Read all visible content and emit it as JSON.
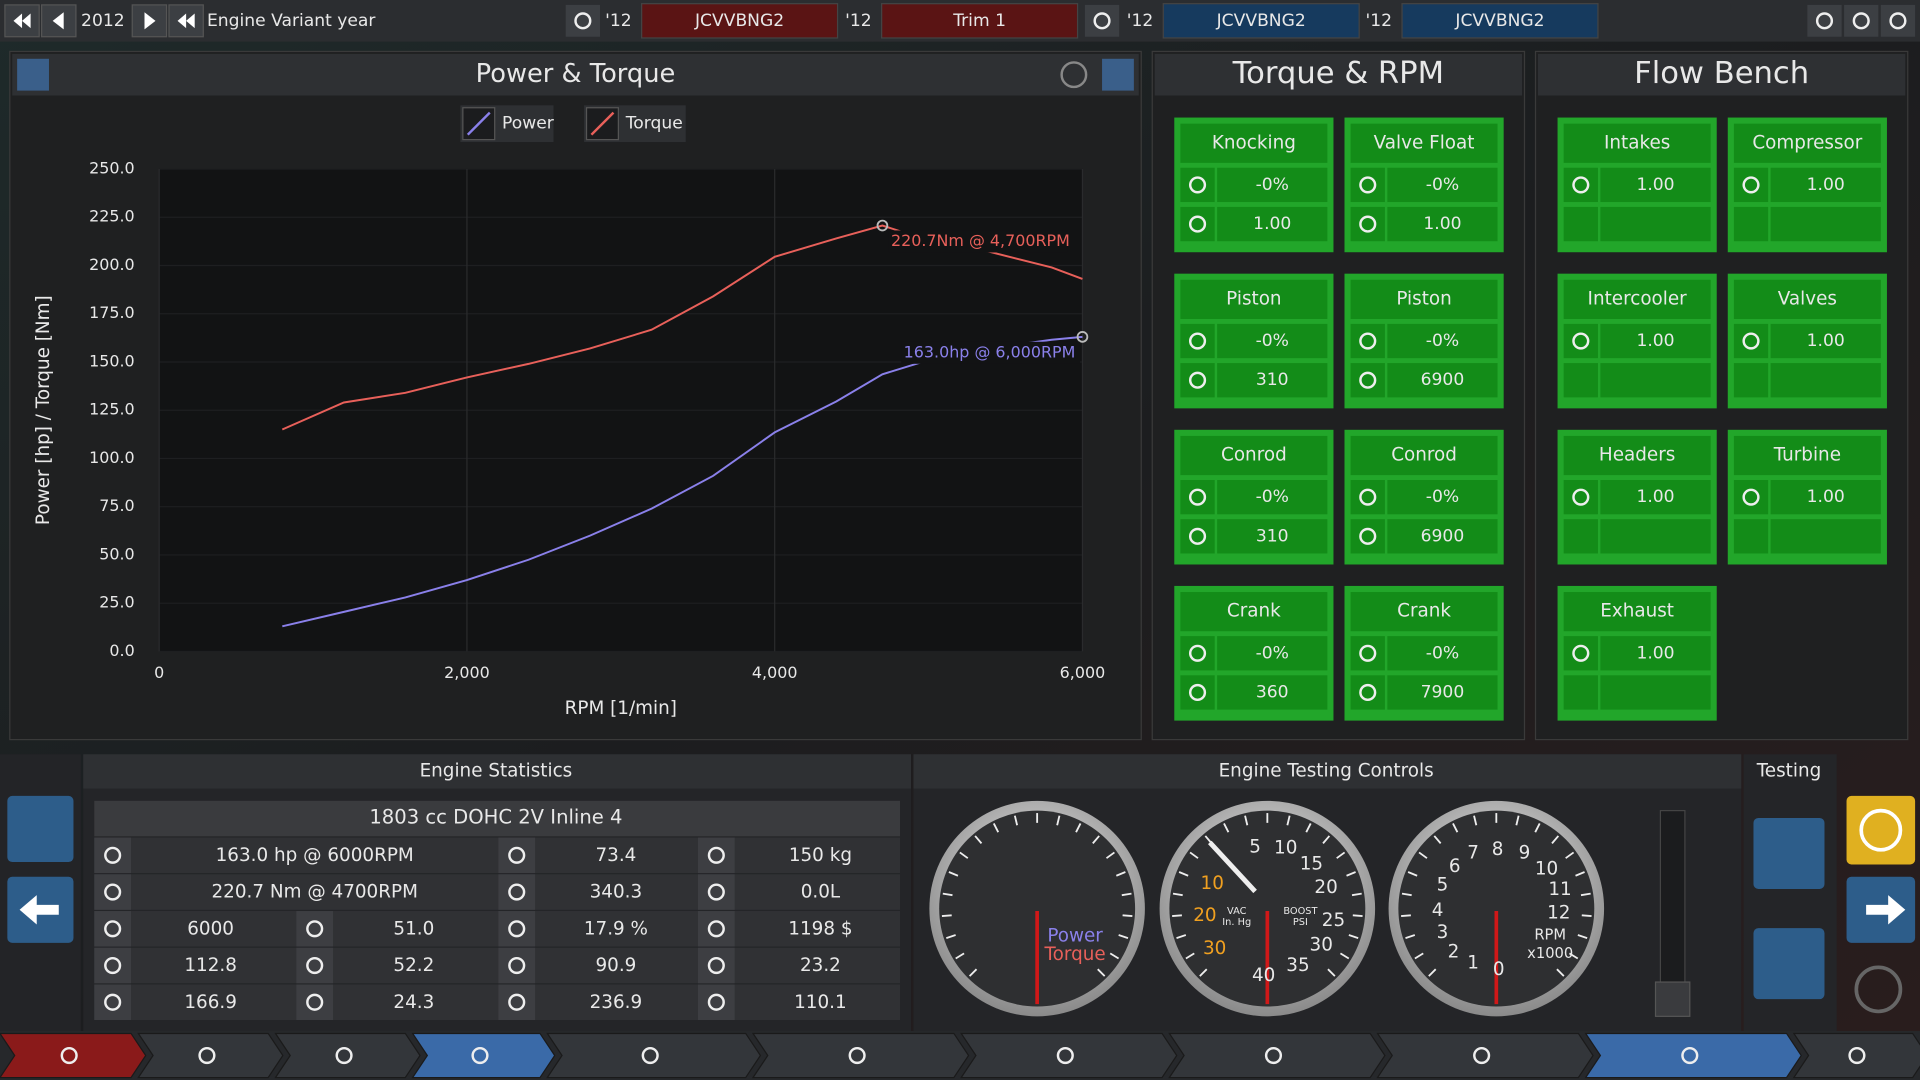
{
  "top_bar": {
    "year": "2012",
    "label": "Engine Variant year",
    "slots": [
      {
        "year": "'12",
        "name": "JCVVBNG2"
      },
      {
        "year": "'12",
        "name": "Trim 1"
      },
      {
        "year": "'12",
        "name": "JCVVBNG2"
      },
      {
        "year": "'12",
        "name": "JCVVBNG2"
      }
    ]
  },
  "chart_data": {
    "type": "line",
    "title": "Power & Torque",
    "x_label": "RPM [1/min]",
    "y_label": "Power [hp] / Torque [Nm]",
    "x": [
      800,
      1200,
      1600,
      2000,
      2400,
      2800,
      3200,
      3600,
      4000,
      4400,
      4700,
      5000,
      5400,
      5800,
      6000
    ],
    "series": [
      {
        "name": "Power",
        "color": "#8a80ea",
        "values": [
          13,
          20.5,
          28,
          37,
          47.5,
          60,
          74,
          91,
          113.5,
          129.5,
          143.6,
          151,
          157,
          161.5,
          163.0
        ]
      },
      {
        "name": "Torque",
        "color": "#e8605a",
        "values": [
          115,
          129,
          134,
          142,
          149,
          157,
          166.7,
          184,
          204.5,
          214,
          220.7,
          213,
          207,
          199,
          193
        ]
      }
    ],
    "annotations": [
      {
        "text": "220.7Nm @ 4,700RPM",
        "x": 4700,
        "y": 220.7,
        "color": "#e8605a"
      },
      {
        "text": "163.0hp @ 6,000RPM",
        "x": 6000,
        "y": 163.0,
        "color": "#8a80ea"
      }
    ],
    "xlim": [
      0,
      6000
    ],
    "xticks": [
      0,
      {
        "value": 2000,
        "label": "2,000"
      },
      {
        "value": 4000,
        "label": "4,000"
      },
      {
        "value": 6000,
        "label": "6,000"
      }
    ],
    "ylim": [
      0,
      250
    ],
    "yticks": [
      {
        "value": 0,
        "label": "0.0"
      },
      {
        "value": 25,
        "label": "25.0"
      },
      {
        "value": 50,
        "label": "50.0"
      },
      {
        "value": 75,
        "label": "75.0"
      },
      {
        "value": 100,
        "label": "100.0"
      },
      {
        "value": 125,
        "label": "125.0"
      },
      {
        "value": 150,
        "label": "150.0"
      },
      {
        "value": 175,
        "label": "175.0"
      },
      {
        "value": 200,
        "label": "200.0"
      },
      {
        "value": 225,
        "label": "225.0"
      },
      {
        "value": 250,
        "label": "250.0"
      }
    ],
    "grid": true,
    "legend": "top"
  },
  "torque_rpm": {
    "title": "Torque & RPM",
    "cards": [
      {
        "title": "Knocking",
        "values": [
          "-0%",
          "1.00"
        ]
      },
      {
        "title": "Valve Float",
        "values": [
          "-0%",
          "1.00"
        ]
      },
      {
        "title": "Piston",
        "values": [
          "-0%",
          "310"
        ]
      },
      {
        "title": "Piston",
        "values": [
          "-0%",
          "6900"
        ]
      },
      {
        "title": "Conrod",
        "values": [
          "-0%",
          "310"
        ]
      },
      {
        "title": "Conrod",
        "values": [
          "-0%",
          "6900"
        ]
      },
      {
        "title": "Crank",
        "values": [
          "-0%",
          "360"
        ]
      },
      {
        "title": "Crank",
        "values": [
          "-0%",
          "7900"
        ]
      }
    ]
  },
  "flow_bench": {
    "title": "Flow Bench",
    "cards": [
      {
        "title": "Intakes",
        "values": [
          "1.00"
        ]
      },
      {
        "title": "Compressor",
        "values": [
          "1.00"
        ]
      },
      {
        "title": "Intercooler",
        "values": [
          "1.00"
        ]
      },
      {
        "title": "Valves",
        "values": [
          "1.00"
        ]
      },
      {
        "title": "Headers",
        "values": [
          "1.00"
        ]
      },
      {
        "title": "Turbine",
        "values": [
          "1.00"
        ]
      },
      {
        "title": "Exhaust",
        "values": [
          "1.00"
        ]
      }
    ]
  },
  "engine_statistics": {
    "title": "Engine Statistics",
    "summary": "1803 cc DOHC 2V  Inline 4",
    "rows": [
      [
        "163.0 hp @ 6000RPM",
        "73.4",
        "150 kg"
      ],
      [
        "220.7 Nm @ 4700RPM",
        "340.3",
        "0.0L"
      ],
      [
        "6000",
        "51.0",
        "17.9 %",
        "1198 $"
      ],
      [
        "112.8",
        "52.2",
        "90.9",
        "23.2"
      ],
      [
        "166.9",
        "24.3",
        "236.9",
        "110.1"
      ]
    ]
  },
  "testing_controls": {
    "title": "Engine Testing Controls",
    "gauges": [
      {
        "labels": [
          "Power",
          "Torque"
        ]
      },
      {
        "labels": [
          "5",
          "10",
          "15",
          "20",
          "25",
          "30",
          "35",
          "40",
          "10",
          "20",
          "30",
          "VAC",
          "In. Hg",
          "BOOST",
          "PSI"
        ]
      },
      {
        "labels": [
          "0",
          "1",
          "2",
          "3",
          "4",
          "5",
          "6",
          "7",
          "8",
          "9",
          "10",
          "11",
          "12",
          "RPM",
          "x1000"
        ]
      }
    ]
  },
  "testing": {
    "title": "Testing"
  }
}
